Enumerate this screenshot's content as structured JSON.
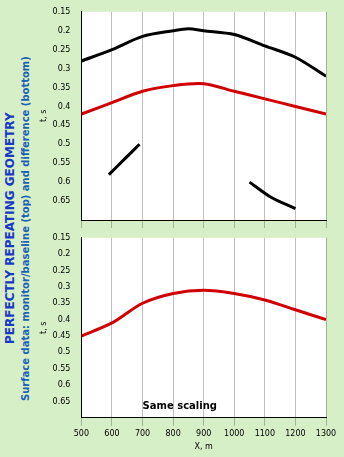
{
  "header": {
    "title": "PERFECTLY REPEATING GEOMETRY",
    "subtitle": "Surface data: monitor/baseline (top) and difference (bottom)"
  },
  "chart_data": [
    {
      "type": "line",
      "ylabel": "t, s",
      "xlim": [
        500,
        1300
      ],
      "ylim": [
        0.7,
        0.15
      ],
      "xticks": [
        500,
        600,
        700,
        800,
        900,
        1000,
        1100,
        1200,
        1300
      ],
      "yticks": [
        0.15,
        0.2,
        0.25,
        0.3,
        0.35,
        0.4,
        0.45,
        0.5,
        0.55,
        0.6,
        0.65
      ],
      "tick_labels": "y",
      "grid": true,
      "series": [
        {
          "color": "#000000",
          "x": [
            500,
            600,
            700,
            800,
            850,
            900,
            1000,
            1100,
            1200,
            1300
          ],
          "values": [
            0.28,
            0.25,
            0.215,
            0.2,
            0.195,
            0.2,
            0.21,
            0.24,
            0.27,
            0.32
          ]
        },
        {
          "color": "#d00000",
          "x": [
            500,
            600,
            700,
            800,
            900,
            1000,
            1100,
            1200,
            1300
          ],
          "values": [
            0.42,
            0.39,
            0.36,
            0.345,
            0.34,
            0.36,
            0.38,
            0.4,
            0.42
          ]
        },
        {
          "color": "#000000",
          "x": [
            590,
            640,
            690
          ],
          "values": [
            0.58,
            0.54,
            0.5
          ]
        },
        {
          "color": "#000000",
          "x": [
            1050,
            1120,
            1200
          ],
          "values": [
            0.6,
            0.64,
            0.67
          ]
        }
      ]
    },
    {
      "type": "line",
      "xlabel": "X, m",
      "ylabel": "t, s",
      "xlim": [
        500,
        1300
      ],
      "ylim": [
        0.7,
        0.15
      ],
      "xticks": [
        500,
        600,
        700,
        800,
        900,
        1000,
        1100,
        1200,
        1300
      ],
      "yticks": [
        0.15,
        0.2,
        0.25,
        0.3,
        0.35,
        0.4,
        0.45,
        0.5,
        0.55,
        0.6,
        0.65
      ],
      "grid": true,
      "annotations": [
        "Same scaling"
      ],
      "series": [
        {
          "color": "#d00000",
          "x": [
            500,
            600,
            700,
            800,
            900,
            1000,
            1100,
            1200,
            1300
          ],
          "values": [
            0.45,
            0.41,
            0.35,
            0.32,
            0.31,
            0.32,
            0.34,
            0.37,
            0.4
          ]
        }
      ]
    }
  ]
}
